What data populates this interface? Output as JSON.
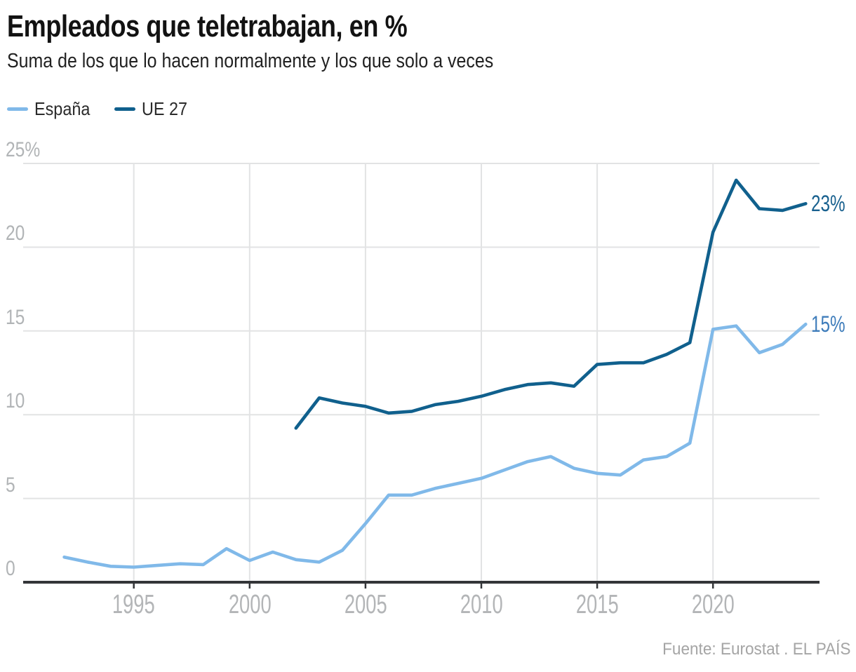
{
  "title": "Empleados que teletrabajan, en %",
  "subtitle": "Suma de los que lo hacen normalmente y los que solo a veces",
  "footer": "Fuente: Eurostat . EL PAÍS",
  "colors": {
    "espana_line": "#80b9e9",
    "ue27_line": "#10608d",
    "espana_value_label": "#3f7dbb",
    "ue27_value_label": "#19618f",
    "grid": "#e2e3e4",
    "axis": "#333538",
    "axis_tick_labels": "#b1b4b6",
    "title_text": "#121212",
    "subtitle_text": "#212121",
    "source_text": "#a5a5a5"
  },
  "chart_data": {
    "type": "line",
    "title": "Empleados que teletrabajan, en %",
    "subtitle": "Suma de los que lo hacen normalmente y los que solo a veces",
    "xlabel": "",
    "ylabel": "",
    "ylim": [
      0,
      25
    ],
    "xlim": [
      1990.2,
      2024.6
    ],
    "grid": true,
    "legend_position": "top-left",
    "y_ticks": [
      {
        "value": 25,
        "label": "25%"
      },
      {
        "value": 20,
        "label": "20"
      },
      {
        "value": 15,
        "label": "15"
      },
      {
        "value": 10,
        "label": "10"
      },
      {
        "value": 5,
        "label": "5"
      },
      {
        "value": 0,
        "label": "0"
      }
    ],
    "x_ticks": [
      {
        "value": 1995,
        "label": "1995"
      },
      {
        "value": 2000,
        "label": "2000"
      },
      {
        "value": 2005,
        "label": "2005"
      },
      {
        "value": 2010,
        "label": "2010"
      },
      {
        "value": 2015,
        "label": "2015"
      },
      {
        "value": 2020,
        "label": "2020"
      }
    ],
    "series": [
      {
        "name": "España",
        "color": "#80b9e9",
        "end_label": "15%",
        "end_label_color": "#3f7dbb",
        "x": [
          1992,
          1993,
          1994,
          1995,
          1996,
          1997,
          1998,
          1999,
          2000,
          2001,
          2002,
          2003,
          2004,
          2005,
          2006,
          2007,
          2008,
          2009,
          2010,
          2011,
          2012,
          2013,
          2014,
          2015,
          2016,
          2017,
          2018,
          2019,
          2020,
          2021,
          2022,
          2023,
          2024
        ],
        "values": [
          1.5,
          1.2,
          0.95,
          0.9,
          1.0,
          1.1,
          1.05,
          2.0,
          1.3,
          1.8,
          1.35,
          1.2,
          1.9,
          3.5,
          5.2,
          5.2,
          5.6,
          5.9,
          6.2,
          6.7,
          7.2,
          7.5,
          6.8,
          6.5,
          6.4,
          7.3,
          7.5,
          8.3,
          15.1,
          15.3,
          13.7,
          14.2,
          15.4
        ]
      },
      {
        "name": "UE 27",
        "color": "#10608d",
        "end_label": "23%",
        "end_label_color": "#19618f",
        "x": [
          2002,
          2003,
          2004,
          2005,
          2006,
          2007,
          2008,
          2009,
          2010,
          2011,
          2012,
          2013,
          2014,
          2015,
          2016,
          2017,
          2018,
          2019,
          2020,
          2021,
          2022,
          2023,
          2024
        ],
        "values": [
          9.2,
          11.0,
          10.7,
          10.5,
          10.1,
          10.2,
          10.6,
          10.8,
          11.1,
          11.5,
          11.8,
          11.9,
          11.7,
          13.0,
          13.1,
          13.1,
          13.6,
          14.3,
          20.9,
          24.0,
          22.3,
          22.2,
          22.6
        ]
      }
    ]
  }
}
